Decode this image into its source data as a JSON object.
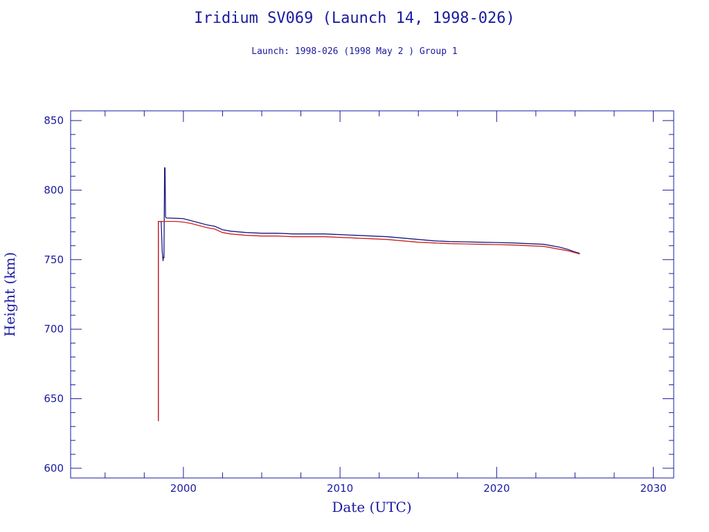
{
  "title": "Iridium SV069 (Launch 14, 1998-026)",
  "subtitle": "Launch: 1998-026  (1998 May  2 )  Group 1",
  "colors": {
    "axis": "#1a1aa0",
    "apogee": "#1a1a80",
    "perigee": "#cc2020"
  },
  "chart_data": {
    "type": "line",
    "title": "Iridium SV069 (Launch 14, 1998-026)",
    "subtitle": "Launch: 1998-026  (1998 May  2 )  Group 1",
    "xlabel": "Date (UTC)",
    "ylabel": "Height (km)",
    "xlim": [
      1992.8,
      2031.3
    ],
    "ylim": [
      593,
      857
    ],
    "xticks": [
      2000,
      2010,
      2020,
      2030
    ],
    "yticks": [
      600,
      650,
      700,
      750,
      800,
      850
    ],
    "grid": false,
    "legend": "none",
    "series": [
      {
        "color": "#1a1a80",
        "x": [
          1998.4,
          1998.4,
          1998.55,
          1998.58,
          1998.65,
          1998.7,
          1998.72,
          1998.76,
          1998.8,
          1998.83,
          1998.86,
          1998.9,
          2000.0,
          2000.5,
          2001.0,
          2001.5,
          2002.0,
          2002.5,
          2003.0,
          2004.0,
          2005.0,
          2006.0,
          2007.0,
          2008.0,
          2009.0,
          2010.0,
          2011.0,
          2012.0,
          2013.0,
          2014.0,
          2015.0,
          2016.0,
          2017.0,
          2018.0,
          2019.0,
          2020.0,
          2021.0,
          2022.0,
          2023.0,
          2023.5,
          2024.0,
          2024.5,
          2025.0,
          2025.3
        ],
        "values": [
          634,
          777.5,
          777.5,
          777,
          756,
          749,
          752,
          751,
          816,
          816,
          781,
          780,
          779.5,
          778,
          776.5,
          775,
          774,
          771.5,
          770.5,
          769.5,
          769,
          769,
          768.5,
          768.5,
          768.5,
          768,
          767.5,
          767,
          766.5,
          765.5,
          764.5,
          763.5,
          763,
          762.8,
          762.5,
          762.3,
          762,
          761.5,
          761,
          760,
          759,
          757.5,
          755.5,
          754.5
        ]
      },
      {
        "color": "#cc2020",
        "x": [
          1998.4,
          1998.4,
          1998.55,
          1999.0,
          1999.5,
          2000.0,
          2000.5,
          2001.0,
          2001.5,
          2002.0,
          2002.5,
          2003.0,
          2004.0,
          2005.0,
          2006.0,
          2007.0,
          2008.0,
          2009.0,
          2010.0,
          2011.0,
          2012.0,
          2013.0,
          2014.0,
          2015.0,
          2016.0,
          2017.0,
          2018.0,
          2019.0,
          2020.0,
          2021.0,
          2022.0,
          2023.0,
          2023.5,
          2024.0,
          2024.5,
          2025.0,
          2025.3
        ],
        "values": [
          634,
          777.5,
          777.5,
          777.5,
          777.5,
          777,
          776,
          774.5,
          773,
          772,
          769.5,
          768.5,
          767.5,
          767,
          767,
          766.5,
          766.5,
          766.5,
          766,
          765.5,
          765,
          764.5,
          763.5,
          762.5,
          762,
          761.5,
          761.3,
          761,
          760.8,
          760.5,
          760,
          759.5,
          758.5,
          757.5,
          756.5,
          755,
          754
        ]
      }
    ]
  },
  "axes": {
    "xlabel": "Date (UTC)",
    "ylabel": "Height (km)"
  }
}
